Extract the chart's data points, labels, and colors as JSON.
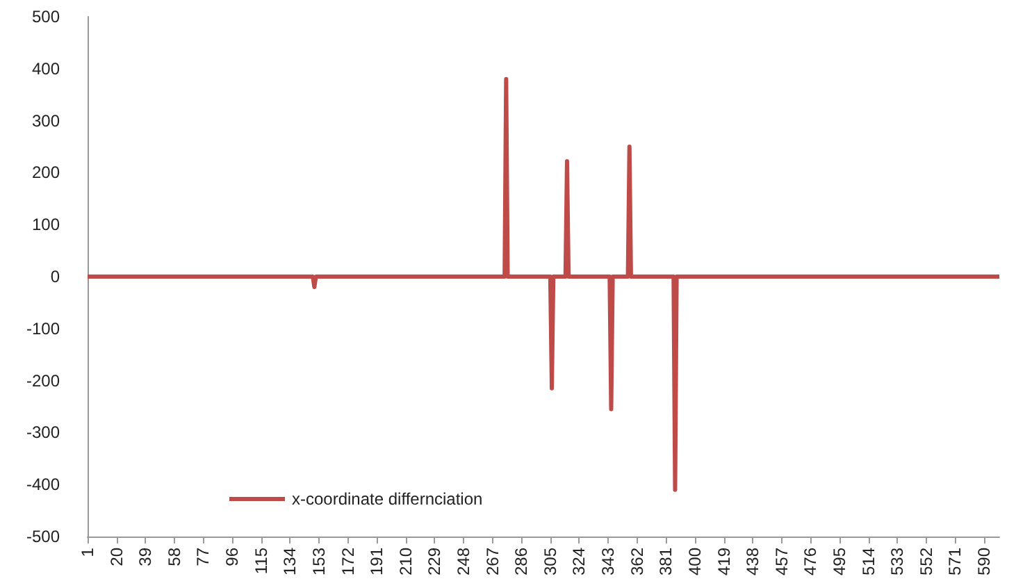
{
  "chart_data": {
    "type": "line",
    "x": [
      1,
      149,
      150,
      151,
      275,
      276,
      277,
      305,
      306,
      307,
      315,
      316,
      317,
      344,
      345,
      346,
      356,
      357,
      358,
      386,
      387,
      388,
      600
    ],
    "series": [
      {
        "name": "x-coordinate differnciation",
        "color": "#be4b48",
        "values": [
          0,
          0,
          -20,
          0,
          0,
          380,
          0,
          0,
          -215,
          0,
          0,
          222,
          0,
          0,
          -255,
          0,
          0,
          250,
          0,
          0,
          -410,
          0,
          0
        ]
      }
    ],
    "xlim": [
      1,
      600
    ],
    "xticks": [
      1,
      20,
      39,
      58,
      77,
      96,
      115,
      134,
      153,
      172,
      191,
      210,
      229,
      248,
      267,
      286,
      305,
      324,
      343,
      362,
      381,
      400,
      419,
      438,
      457,
      476,
      495,
      514,
      533,
      552,
      571,
      590
    ],
    "ylim": [
      -500,
      500
    ],
    "yticks": [
      -500,
      -400,
      -300,
      -200,
      -100,
      0,
      100,
      200,
      300,
      400,
      500
    ],
    "grid": false,
    "legend": "bottom left",
    "marker": "none",
    "line_style": "solid"
  }
}
